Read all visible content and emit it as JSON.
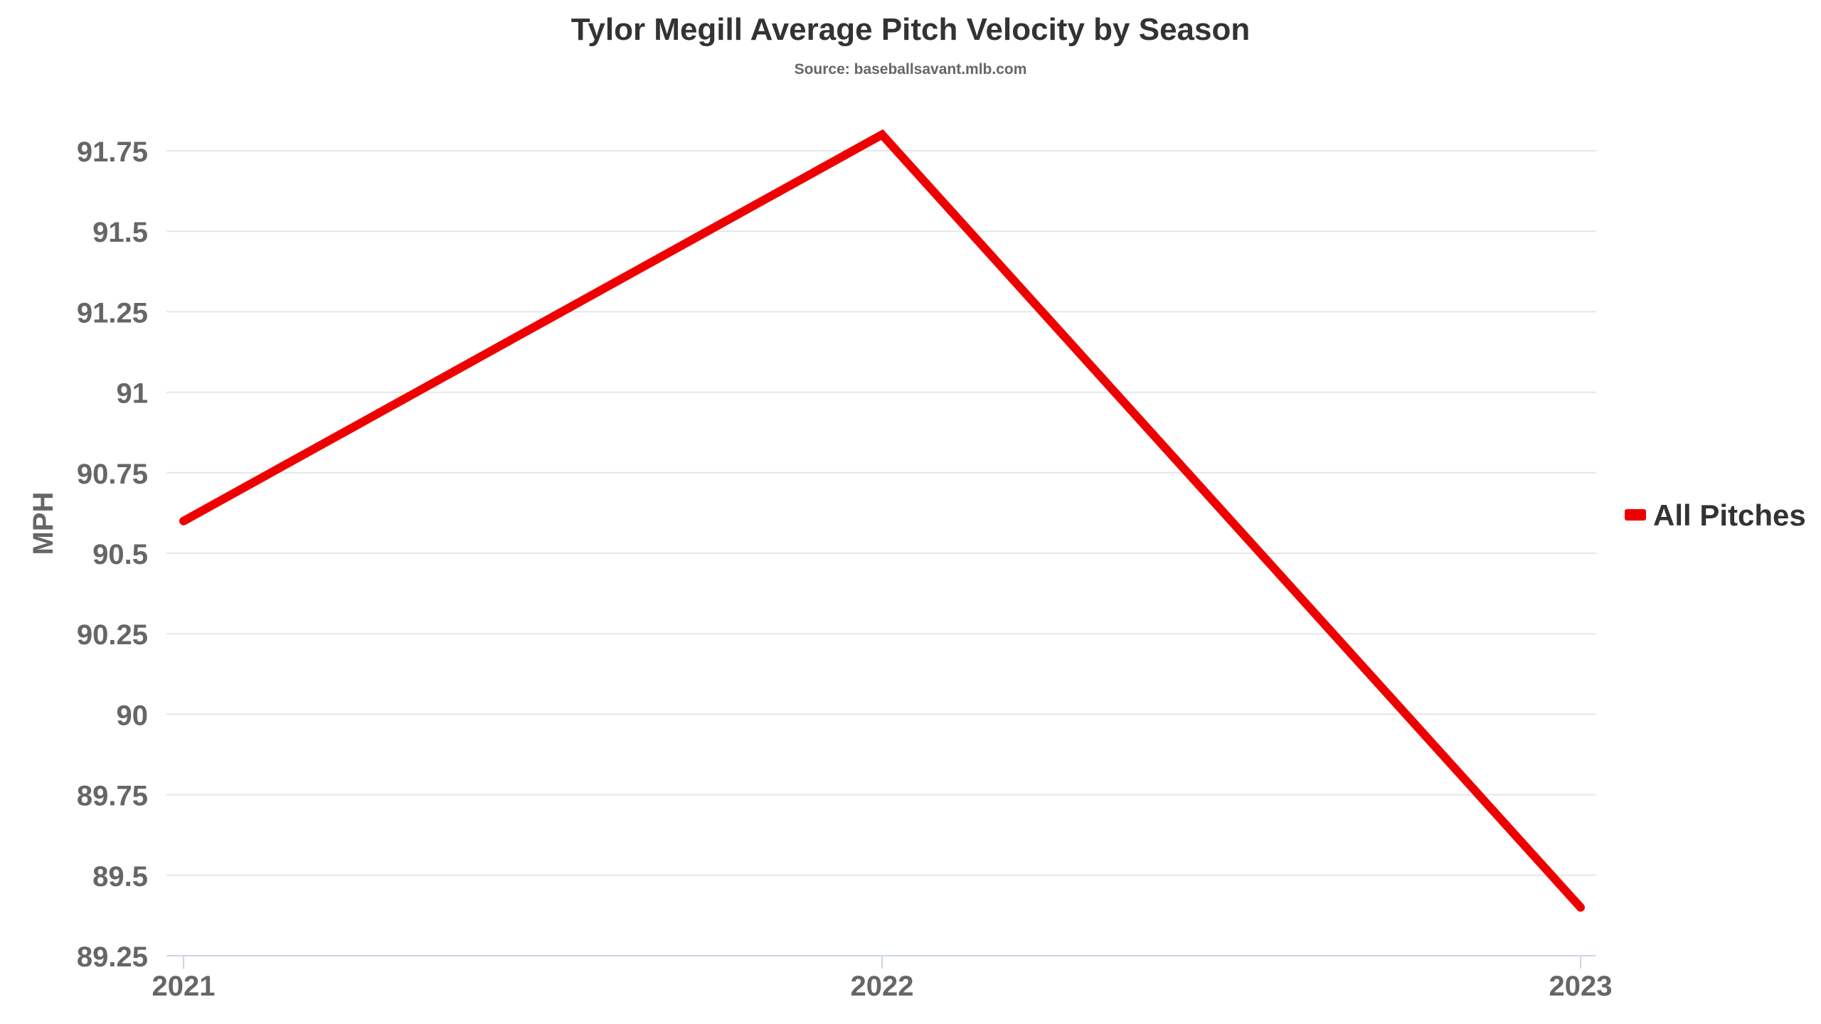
{
  "chart_data": {
    "type": "line",
    "title": "Tylor Megill Average Pitch Velocity by Season",
    "subtitle": "Source: baseballsavant.mlb.com",
    "xlabel": "",
    "ylabel": "MPH",
    "categories": [
      "2021",
      "2022",
      "2023"
    ],
    "series": [
      {
        "name": "All Pitches",
        "values": [
          90.6,
          91.8,
          89.4
        ],
        "color": "#ee0000"
      }
    ],
    "ylim": [
      89.25,
      91.75
    ],
    "yticks": [
      89.25,
      89.5,
      89.75,
      90,
      90.25,
      90.5,
      90.75,
      91,
      91.25,
      91.5,
      91.75
    ],
    "ytick_labels": [
      "89.25",
      "89.5",
      "89.75",
      "90",
      "90.25",
      "90.5",
      "90.75",
      "91",
      "91.25",
      "91.5",
      "91.75"
    ],
    "grid": true,
    "legend_position": "right",
    "colors": {
      "grid": "#e6e6e6",
      "axis": "#ccd6eb",
      "text_dark": "#333333",
      "text_muted": "#666666"
    }
  }
}
